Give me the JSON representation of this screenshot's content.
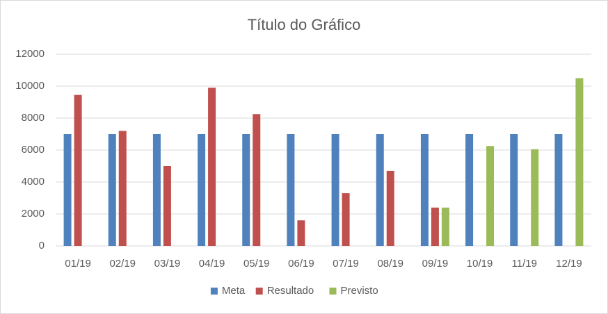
{
  "chart_data": {
    "type": "bar",
    "title": "Título do Gráfico",
    "categories": [
      "01/19",
      "02/19",
      "03/19",
      "04/19",
      "05/19",
      "06/19",
      "07/19",
      "08/19",
      "09/19",
      "10/19",
      "11/19",
      "12/19"
    ],
    "series": [
      {
        "name": "Meta",
        "color": "#4f81bd",
        "values": [
          7000,
          7000,
          7000,
          7000,
          7000,
          7000,
          7000,
          7000,
          7000,
          7000,
          7000,
          7000
        ]
      },
      {
        "name": "Resultado",
        "color": "#c0504d",
        "values": [
          9450,
          7200,
          5000,
          9900,
          8250,
          1600,
          3300,
          4700,
          2400,
          null,
          null,
          null
        ]
      },
      {
        "name": "Previsto",
        "color": "#9bbb59",
        "values": [
          null,
          null,
          null,
          null,
          null,
          null,
          null,
          null,
          2400,
          6250,
          6050,
          10500
        ]
      }
    ],
    "ylim": [
      0,
      12000
    ],
    "yticks": [
      0,
      2000,
      4000,
      6000,
      8000,
      10000,
      12000
    ],
    "grid": true,
    "legend": "bottom"
  }
}
